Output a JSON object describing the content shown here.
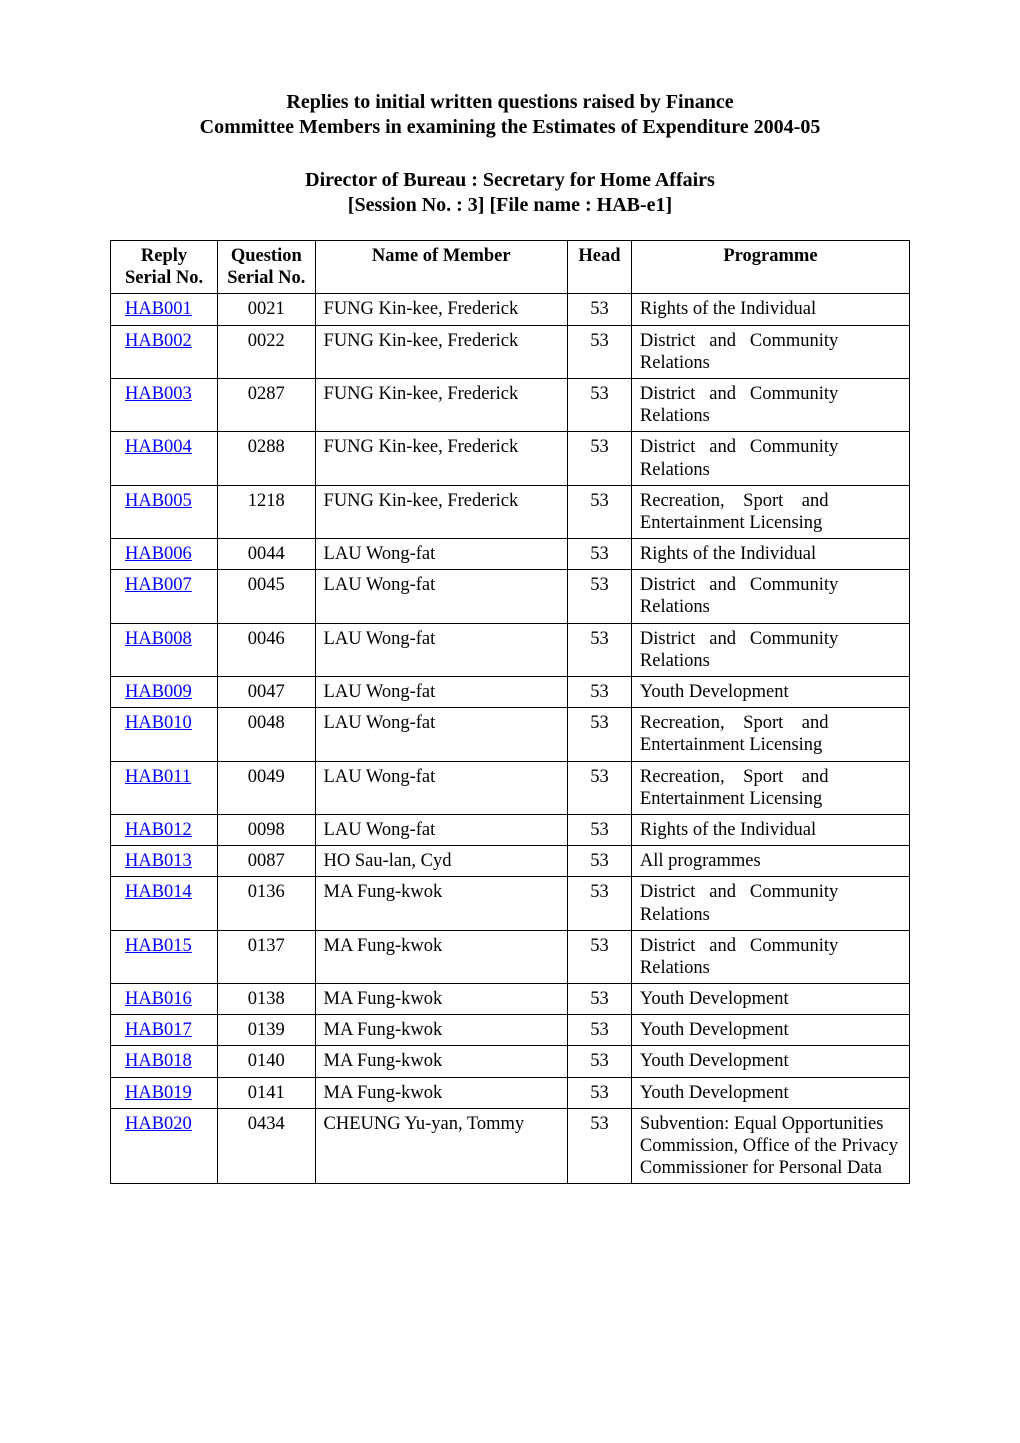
{
  "header": {
    "title_line1": "Replies to initial written questions raised by Finance",
    "title_line2": "Committee Members in examining the Estimates of Expenditure 2004-05",
    "director_line": "Director of Bureau : Secretary for Home Affairs",
    "session_file_line": "[Session No. : 3]    [File name : HAB-e1]"
  },
  "table": {
    "columns": {
      "reply_line1": "Reply",
      "reply_line2": "Serial No.",
      "question_line1": "Question",
      "question_line2": "Serial No.",
      "member": "Name of Member",
      "head": "Head",
      "programme": "Programme"
    },
    "column_widths_pct": [
      13.4,
      12.2,
      31.6,
      8,
      34.8
    ],
    "border_color": "#000000",
    "link_color": "#0000ff",
    "font_family": "Times New Roman",
    "body_fontsize_pt": 14,
    "rows": [
      {
        "reply": "HAB001",
        "qsn": "0021",
        "member": "FUNG Kin-kee, Frederick",
        "head": "53",
        "programme": "Rights of the Individual",
        "justify": false
      },
      {
        "reply": "HAB002",
        "qsn": "0022",
        "member": "FUNG Kin-kee, Frederick",
        "head": "53",
        "programme": "District and Community Relations",
        "justify": true
      },
      {
        "reply": "HAB003",
        "qsn": "0287",
        "member": "FUNG Kin-kee, Frederick",
        "head": "53",
        "programme": "District and Community Relations",
        "justify": true
      },
      {
        "reply": "HAB004",
        "qsn": "0288",
        "member": "FUNG Kin-kee, Frederick",
        "head": "53",
        "programme": "District and Community Relations",
        "justify": true
      },
      {
        "reply": "HAB005",
        "qsn": "1218",
        "member": "FUNG Kin-kee, Frederick",
        "head": "53",
        "programme": "Recreation, Sport and Entertainment Licensing",
        "justify": true
      },
      {
        "reply": "HAB006",
        "qsn": "0044",
        "member": "LAU Wong-fat",
        "head": "53",
        "programme": "Rights of the Individual",
        "justify": false
      },
      {
        "reply": "HAB007",
        "qsn": "0045",
        "member": "LAU Wong-fat",
        "head": "53",
        "programme": "District and Community Relations",
        "justify": true
      },
      {
        "reply": "HAB008",
        "qsn": "0046",
        "member": "LAU Wong-fat",
        "head": "53",
        "programme": "District and Community Relations",
        "justify": true
      },
      {
        "reply": "HAB009",
        "qsn": "0047",
        "member": "LAU Wong-fat",
        "head": "53",
        "programme": "Youth Development",
        "justify": false
      },
      {
        "reply": "HAB010",
        "qsn": "0048",
        "member": "LAU Wong-fat",
        "head": "53",
        "programme": "Recreation, Sport and Entertainment Licensing",
        "justify": true
      },
      {
        "reply": "HAB011",
        "qsn": "0049",
        "member": "LAU Wong-fat",
        "head": "53",
        "programme": "Recreation, Sport and Entertainment Licensing",
        "justify": true
      },
      {
        "reply": "HAB012",
        "qsn": "0098",
        "member": "LAU Wong-fat",
        "head": "53",
        "programme": "Rights of the Individual",
        "justify": false
      },
      {
        "reply": "HAB013",
        "qsn": "0087",
        "member": "HO Sau-lan, Cyd",
        "head": "53",
        "programme": "All programmes",
        "justify": false
      },
      {
        "reply": "HAB014",
        "qsn": "0136",
        "member": "MA Fung-kwok",
        "head": "53",
        "programme": "District and Community Relations",
        "justify": true
      },
      {
        "reply": "HAB015",
        "qsn": "0137",
        "member": "MA Fung-kwok",
        "head": "53",
        "programme": "District and Community Relations",
        "justify": true
      },
      {
        "reply": "HAB016",
        "qsn": "0138",
        "member": "MA Fung-kwok",
        "head": "53",
        "programme": "Youth Development",
        "justify": false
      },
      {
        "reply": "HAB017",
        "qsn": "0139",
        "member": "MA Fung-kwok",
        "head": "53",
        "programme": "Youth Development",
        "justify": false
      },
      {
        "reply": "HAB018",
        "qsn": "0140",
        "member": "MA Fung-kwok",
        "head": "53",
        "programme": "Youth Development",
        "justify": false
      },
      {
        "reply": "HAB019",
        "qsn": "0141",
        "member": "MA Fung-kwok",
        "head": "53",
        "programme": "Youth Development",
        "justify": false
      },
      {
        "reply": "HAB020",
        "qsn": "0434",
        "member": "CHEUNG Yu-yan, Tommy",
        "head": "53",
        "programme": "Subvention: Equal Opportunities Commission, Office of the Privacy Commissioner for Personal Data",
        "justify": false
      }
    ]
  }
}
